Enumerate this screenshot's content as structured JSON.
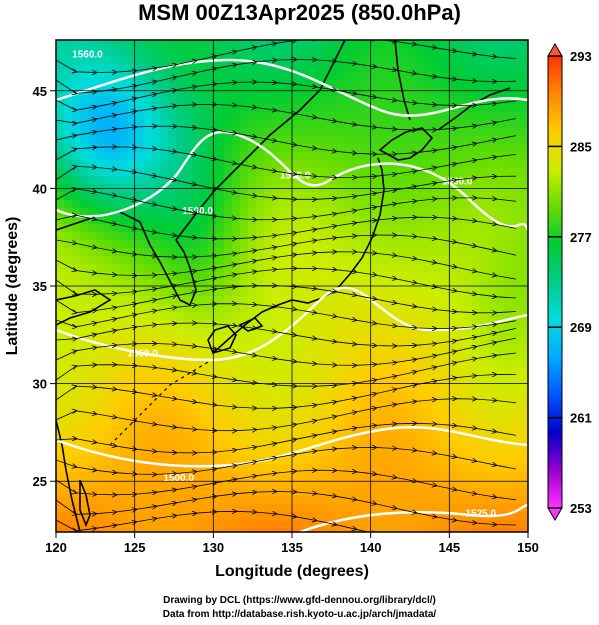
{
  "title": "MSM 00Z13Apr2025 (850.0hPa)",
  "footer_line1": "Drawing by DCL (https://www.gfd-dennou.org/library/dcl/)",
  "footer_line2": "Data from http://database.rish.kyoto-u.ac.jp/arch/jmadata/",
  "chart_data": {
    "type": "heatmap",
    "title": "MSM 00Z13Apr2025 (850.0hPa)",
    "xlabel": "Longitude (degrees)",
    "ylabel": "Latitude  (degrees)",
    "xlim": [
      120,
      150
    ],
    "ylim": [
      22.4,
      47.6
    ],
    "x_ticks": [
      120,
      125,
      130,
      135,
      140,
      145,
      150
    ],
    "y_ticks": [
      25,
      30,
      35,
      40,
      45
    ],
    "grid": true,
    "colorbar": {
      "min": 253,
      "max": 293,
      "tick_values": [
        253,
        261,
        269,
        277,
        285,
        293
      ],
      "colors": [
        "#ff33ff",
        "#9900cc",
        "#0000cc",
        "#0055ff",
        "#00aaff",
        "#00dddd",
        "#00cc88",
        "#00cc33",
        "#66dd00",
        "#ccee00",
        "#ffcc00",
        "#ff8800",
        "#ff3300"
      ]
    },
    "contour_labels": [
      {
        "text": "1560.0",
        "lon": 122.0,
        "lat": 46.7
      },
      {
        "text": "1500.0",
        "lon": 129.0,
        "lat": 38.7
      },
      {
        "text": "1560.0",
        "lon": 135.2,
        "lat": 40.5
      },
      {
        "text": "1560.0",
        "lon": 145.5,
        "lat": 40.2
      },
      {
        "text": "1560.0",
        "lon": 125.5,
        "lat": 31.4
      },
      {
        "text": "1500.0",
        "lon": 127.8,
        "lat": 25.0
      },
      {
        "text": "1525.0",
        "lon": 147.0,
        "lat": 23.2
      }
    ]
  }
}
